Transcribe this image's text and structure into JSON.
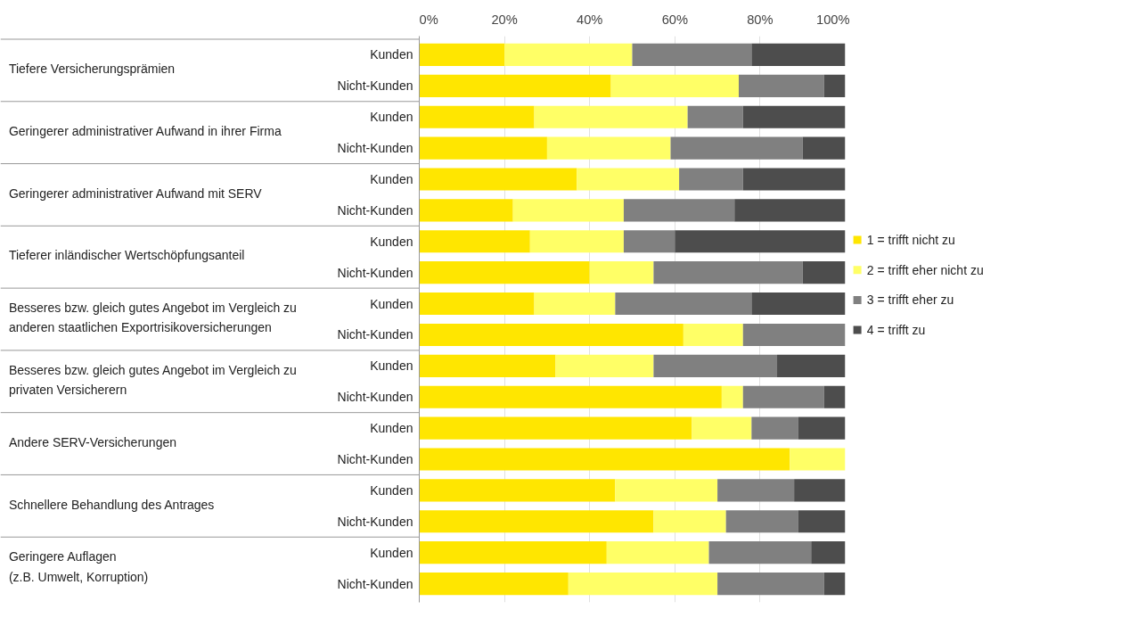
{
  "chart_data": {
    "type": "bar",
    "orientation": "horizontal",
    "stacked": true,
    "categories": [
      "Kunden",
      "Nicht-Kunden",
      "Kunden",
      "Nicht-Kunden",
      "Kunden",
      "Nicht-Kunden",
      "Kunden",
      "Nicht-Kunden",
      "Kunden",
      "Nicht-Kunden",
      "Kunden",
      "Nicht-Kunden",
      "Kunden",
      "Nicht-Kunden",
      "Kunden",
      "Nicht-Kunden",
      "Kunden",
      "Nicht-Kunden"
    ],
    "annotations": [
      "Tiefere Versicherungsprämien",
      "Geringerer administrativer Aufwand in ihrer Firma",
      "Geringerer administrativer Aufwand mit SERV",
      "Tieferer inländischer Wertschöpfungsanteil",
      "Besseres bzw. gleich gutes Angebot im Vergleich zu\nanderen staatlichen Exportrisikoversicherungen",
      "Besseres bzw. gleich gutes Angebot im Vergleich zu\nprivaten Versicherern",
      "Andere SERV-Versicherungen",
      "Schnellere Behandlung des Antrages",
      "Geringere Auflagen\n(z.B. Umwelt, Korruption)"
    ],
    "series": [
      {
        "name": "1 = trifft nicht zu",
        "color": "#ffe600",
        "values": [
          20,
          45,
          27,
          30,
          37,
          22,
          26,
          40,
          27,
          62,
          32,
          71,
          64,
          87,
          46,
          55,
          44,
          35
        ]
      },
      {
        "name": "2 = trifft eher nicht zu",
        "color": "#ffff66",
        "values": [
          30,
          30,
          36,
          29,
          24,
          26,
          22,
          15,
          19,
          14,
          23,
          5,
          14,
          13,
          24,
          17,
          24,
          35
        ]
      },
      {
        "name": "3 = trifft eher zu",
        "color": "#808080",
        "values": [
          28,
          20,
          13,
          31,
          15,
          26,
          12,
          35,
          32,
          24,
          29,
          19,
          11,
          0,
          18,
          17,
          24,
          25
        ]
      },
      {
        "name": "4 = trifft zu",
        "color": "#4d4d4d",
        "values": [
          22,
          5,
          24,
          10,
          24,
          26,
          40,
          10,
          22,
          0,
          16,
          5,
          11,
          0,
          12,
          11,
          8,
          5
        ]
      }
    ],
    "xlim": [
      0,
      100
    ],
    "xticks": [
      {
        "value": 0,
        "label": "0%"
      },
      {
        "value": 20,
        "label": "20%"
      },
      {
        "value": 40,
        "label": "40%"
      },
      {
        "value": 60,
        "label": "60%"
      },
      {
        "value": 80,
        "label": "80%"
      },
      {
        "value": 100,
        "label": "100%"
      }
    ],
    "grid": "x",
    "legend": "right"
  }
}
